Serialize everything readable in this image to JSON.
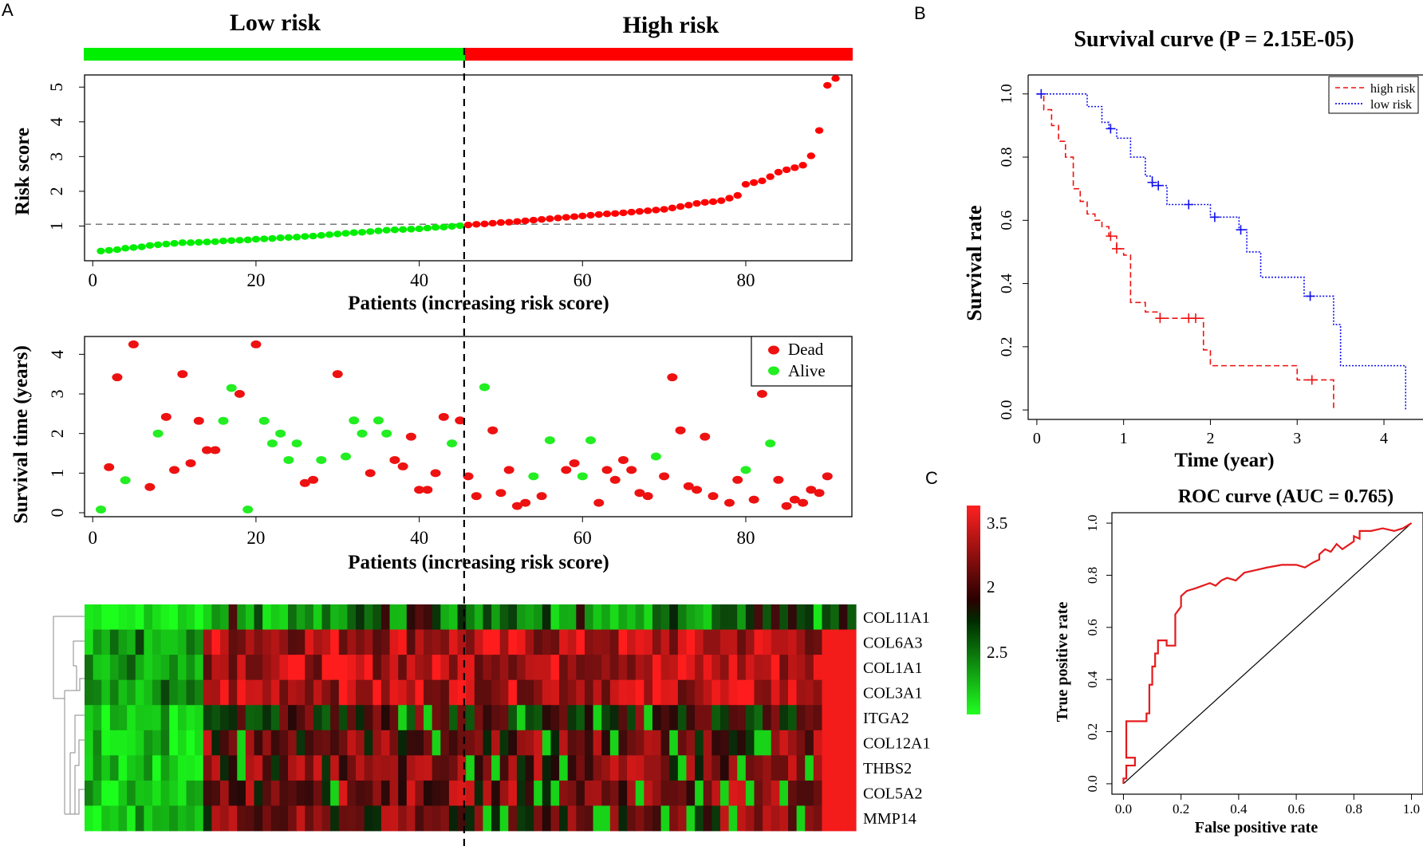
{
  "panels": {
    "a": "A",
    "b": "B",
    "c": "C"
  },
  "colors": {
    "low": "#00ee00",
    "high": "#ff0000",
    "dead": "#ee1111",
    "alive": "#22ee22",
    "km_high": "#ee1111",
    "km_low": "#1111ee",
    "roc": "#e41a1c"
  },
  "group_labels": {
    "low": "Low risk",
    "high": "High risk"
  },
  "chart_data": [
    {
      "id": "risk",
      "type": "scatter",
      "title": "",
      "xlabel": "Patients (increasing risk score)",
      "ylabel": "Risk score",
      "xlim": [
        -1,
        93
      ],
      "ylim": [
        0,
        5.35
      ],
      "xticks": [
        "0",
        "20",
        "40",
        "60",
        "80"
      ],
      "yticks": [
        "1",
        "2",
        "3",
        "4",
        "5"
      ],
      "cutoff_index": 45.5,
      "cutoff_value": 1.05,
      "x": [
        1,
        2,
        3,
        4,
        5,
        6,
        7,
        8,
        9,
        10,
        11,
        12,
        13,
        14,
        15,
        16,
        17,
        18,
        19,
        20,
        21,
        22,
        23,
        24,
        25,
        26,
        27,
        28,
        29,
        30,
        31,
        32,
        33,
        34,
        35,
        36,
        37,
        38,
        39,
        40,
        41,
        42,
        43,
        44,
        45,
        46,
        47,
        48,
        49,
        50,
        51,
        52,
        53,
        54,
        55,
        56,
        57,
        58,
        59,
        60,
        61,
        62,
        63,
        64,
        65,
        66,
        67,
        68,
        69,
        70,
        71,
        72,
        73,
        74,
        75,
        76,
        77,
        78,
        79,
        80,
        81,
        82,
        83,
        84,
        85,
        86,
        87,
        88,
        89,
        90,
        91
      ],
      "values": [
        0.28,
        0.3,
        0.32,
        0.36,
        0.38,
        0.4,
        0.44,
        0.46,
        0.48,
        0.5,
        0.52,
        0.52,
        0.53,
        0.54,
        0.55,
        0.57,
        0.58,
        0.59,
        0.6,
        0.62,
        0.63,
        0.64,
        0.66,
        0.67,
        0.68,
        0.7,
        0.71,
        0.73,
        0.75,
        0.77,
        0.79,
        0.81,
        0.82,
        0.84,
        0.86,
        0.88,
        0.89,
        0.9,
        0.91,
        0.92,
        0.94,
        0.96,
        0.97,
        0.99,
        1.01,
        1.03,
        1.05,
        1.06,
        1.08,
        1.1,
        1.11,
        1.13,
        1.15,
        1.17,
        1.19,
        1.21,
        1.23,
        1.25,
        1.27,
        1.29,
        1.31,
        1.33,
        1.35,
        1.36,
        1.38,
        1.4,
        1.42,
        1.44,
        1.46,
        1.48,
        1.52,
        1.56,
        1.6,
        1.65,
        1.68,
        1.7,
        1.73,
        1.8,
        1.88,
        2.2,
        2.25,
        2.3,
        2.42,
        2.55,
        2.62,
        2.68,
        2.75,
        3.02,
        3.75,
        5.05,
        5.25
      ],
      "colors_by": "group"
    },
    {
      "id": "survival",
      "type": "scatter",
      "title": "",
      "xlabel": "Patients (increasing risk score)",
      "ylabel": "Survival time (years)",
      "xlim": [
        -1,
        93
      ],
      "ylim": [
        -0.1,
        4.45
      ],
      "xticks": [
        "0",
        "20",
        "40",
        "60",
        "80"
      ],
      "yticks": [
        "0",
        "1",
        "2",
        "3",
        "4"
      ],
      "legend": [
        {
          "label": "Dead",
          "status": "dead"
        },
        {
          "label": "Alive",
          "status": "alive"
        }
      ],
      "x": [
        1,
        2,
        3,
        4,
        5,
        7,
        8,
        9,
        10,
        11,
        12,
        13,
        14,
        15,
        16,
        17,
        18,
        19,
        20,
        21,
        22,
        23,
        24,
        25,
        26,
        27,
        28,
        30,
        31,
        32,
        33,
        34,
        35,
        36,
        37,
        38,
        39,
        40,
        41,
        42,
        43,
        44,
        45,
        46,
        47,
        48,
        49,
        50,
        51,
        52,
        53,
        54,
        55,
        56,
        58,
        59,
        60,
        61,
        62,
        63,
        64,
        65,
        66,
        67,
        68,
        69,
        70,
        71,
        72,
        73,
        74,
        75,
        76,
        78,
        79,
        80,
        81,
        82,
        83,
        84,
        85,
        86,
        87,
        88,
        89,
        90
      ],
      "values": [
        0.08,
        1.15,
        3.42,
        0.82,
        4.25,
        0.65,
        2.0,
        2.42,
        1.08,
        3.5,
        1.25,
        2.32,
        1.58,
        1.58,
        2.32,
        3.15,
        3.0,
        0.08,
        4.25,
        2.32,
        1.75,
        2.0,
        1.33,
        1.75,
        0.75,
        0.83,
        1.33,
        3.5,
        1.42,
        2.33,
        2.0,
        1.0,
        2.33,
        2.0,
        1.33,
        1.17,
        1.92,
        0.58,
        0.58,
        1.0,
        2.42,
        1.75,
        2.33,
        0.92,
        0.42,
        3.17,
        2.08,
        0.5,
        1.08,
        0.17,
        0.25,
        0.92,
        0.42,
        1.83,
        1.08,
        1.25,
        0.92,
        1.83,
        0.25,
        1.08,
        0.83,
        1.33,
        1.08,
        0.5,
        0.42,
        1.42,
        0.92,
        3.42,
        2.08,
        0.67,
        0.58,
        1.92,
        0.42,
        0.25,
        0.83,
        1.08,
        0.33,
        3.0,
        1.75,
        0.83,
        0.17,
        0.33,
        0.25,
        0.58,
        0.5,
        0.92
      ],
      "status": [
        "alive",
        "dead",
        "dead",
        "alive",
        "dead",
        "dead",
        "alive",
        "dead",
        "dead",
        "dead",
        "dead",
        "dead",
        "dead",
        "dead",
        "alive",
        "alive",
        "dead",
        "alive",
        "dead",
        "alive",
        "alive",
        "alive",
        "alive",
        "alive",
        "dead",
        "dead",
        "alive",
        "dead",
        "alive",
        "alive",
        "alive",
        "dead",
        "alive",
        "alive",
        "dead",
        "dead",
        "dead",
        "dead",
        "dead",
        "dead",
        "dead",
        "alive",
        "dead",
        "dead",
        "dead",
        "alive",
        "dead",
        "dead",
        "dead",
        "dead",
        "dead",
        "alive",
        "dead",
        "alive",
        "dead",
        "dead",
        "alive",
        "alive",
        "dead",
        "dead",
        "dead",
        "dead",
        "dead",
        "dead",
        "dead",
        "alive",
        "dead",
        "dead",
        "dead",
        "dead",
        "dead",
        "dead",
        "dead",
        "dead",
        "dead",
        "alive",
        "dead",
        "dead",
        "alive",
        "dead",
        "dead",
        "dead",
        "dead",
        "dead",
        "dead",
        "dead"
      ]
    },
    {
      "id": "heatmap",
      "type": "heatmap",
      "rows": [
        "COL11A1",
        "COL6A3",
        "COL1A1",
        "COL3A1",
        "ITGA2",
        "COL12A1",
        "THBS2",
        "COL5A2",
        "MMP14"
      ],
      "n_cols": 91,
      "low_group_cols": 14,
      "colorbar_ticks": [
        "3.5",
        "2",
        "2.5"
      ],
      "value_range": [
        -1,
        1
      ]
    },
    {
      "id": "km",
      "type": "line",
      "title": "Survival curve (P = 2.15E-05)",
      "xlabel": "Time (year)",
      "ylabel": "Survival rate",
      "xlim": [
        -0.1,
        4.45
      ],
      "ylim": [
        -0.03,
        1.06
      ],
      "xticks": [
        "0",
        "1",
        "2",
        "3",
        "4"
      ],
      "yticks": [
        "0.0",
        "0.2",
        "0.4",
        "0.6",
        "0.8",
        "1.0"
      ],
      "legend": [
        "high risk",
        "low risk"
      ],
      "series": [
        {
          "name": "high risk",
          "style": "dashed",
          "x": [
            0,
            0.08,
            0.17,
            0.25,
            0.33,
            0.42,
            0.5,
            0.58,
            0.67,
            0.75,
            0.83,
            0.92,
            1.0,
            1.08,
            1.25,
            1.42,
            1.75,
            1.92,
            2.0,
            2.5,
            3.0,
            3.42
          ],
          "y": [
            1.0,
            0.95,
            0.9,
            0.85,
            0.8,
            0.7,
            0.66,
            0.62,
            0.6,
            0.58,
            0.55,
            0.51,
            0.49,
            0.34,
            0.31,
            0.29,
            0.29,
            0.19,
            0.14,
            0.14,
            0.095,
            0.0
          ],
          "censor": [
            [
              0.85,
              0.55
            ],
            [
              0.92,
              0.51
            ],
            [
              1.42,
              0.29
            ],
            [
              1.75,
              0.29
            ],
            [
              1.83,
              0.29
            ],
            [
              3.17,
              0.095
            ]
          ]
        },
        {
          "name": "low risk",
          "style": "dotted",
          "x": [
            0,
            0.58,
            0.75,
            0.83,
            0.92,
            1.08,
            1.25,
            1.33,
            1.5,
            1.67,
            2.0,
            2.33,
            2.42,
            2.58,
            3.08,
            3.42,
            3.5,
            4.0,
            4.25
          ],
          "y": [
            1.0,
            0.96,
            0.91,
            0.89,
            0.86,
            0.8,
            0.74,
            0.71,
            0.65,
            0.65,
            0.61,
            0.57,
            0.5,
            0.42,
            0.36,
            0.27,
            0.14,
            0.14,
            0.0
          ],
          "censor": [
            [
              0.05,
              1.0
            ],
            [
              0.85,
              0.89
            ],
            [
              1.33,
              0.72
            ],
            [
              1.4,
              0.71
            ],
            [
              1.75,
              0.65
            ],
            [
              2.05,
              0.61
            ],
            [
              2.35,
              0.57
            ],
            [
              3.15,
              0.36
            ]
          ]
        }
      ]
    },
    {
      "id": "roc",
      "type": "line",
      "title": "ROC curve (AUC = 0.765)",
      "xlabel": "False positive rate",
      "ylabel": "True positive rate",
      "xlim": [
        -0.04,
        1.04
      ],
      "ylim": [
        -0.04,
        1.04
      ],
      "xticks": [
        "0.0",
        "0.2",
        "0.4",
        "0.6",
        "0.8",
        "1.0"
      ],
      "yticks": [
        "0.0",
        "0.2",
        "0.4",
        "0.6",
        "0.8",
        "1.0"
      ],
      "x": [
        0,
        0,
        0.01,
        0.01,
        0.04,
        0.04,
        0.01,
        0.01,
        0.08,
        0.08,
        0.09,
        0.09,
        0.1,
        0.1,
        0.11,
        0.11,
        0.12,
        0.12,
        0.15,
        0.15,
        0.18,
        0.18,
        0.2,
        0.2,
        0.22,
        0.25,
        0.3,
        0.32,
        0.34,
        0.36,
        0.39,
        0.42,
        0.46,
        0.5,
        0.55,
        0.6,
        0.63,
        0.66,
        0.68,
        0.68,
        0.7,
        0.72,
        0.74,
        0.76,
        0.8,
        0.8,
        0.82,
        0.82,
        0.86,
        0.9,
        0.94,
        0.97,
        1.0
      ],
      "y": [
        0,
        0.02,
        0.02,
        0.07,
        0.07,
        0.1,
        0.1,
        0.24,
        0.24,
        0.27,
        0.27,
        0.38,
        0.38,
        0.45,
        0.45,
        0.5,
        0.5,
        0.55,
        0.55,
        0.53,
        0.53,
        0.65,
        0.68,
        0.72,
        0.74,
        0.75,
        0.77,
        0.76,
        0.78,
        0.79,
        0.78,
        0.81,
        0.82,
        0.83,
        0.84,
        0.84,
        0.83,
        0.85,
        0.86,
        0.88,
        0.9,
        0.89,
        0.92,
        0.9,
        0.93,
        0.95,
        0.94,
        0.97,
        0.97,
        0.98,
        0.97,
        0.98,
        1.0
      ]
    }
  ]
}
